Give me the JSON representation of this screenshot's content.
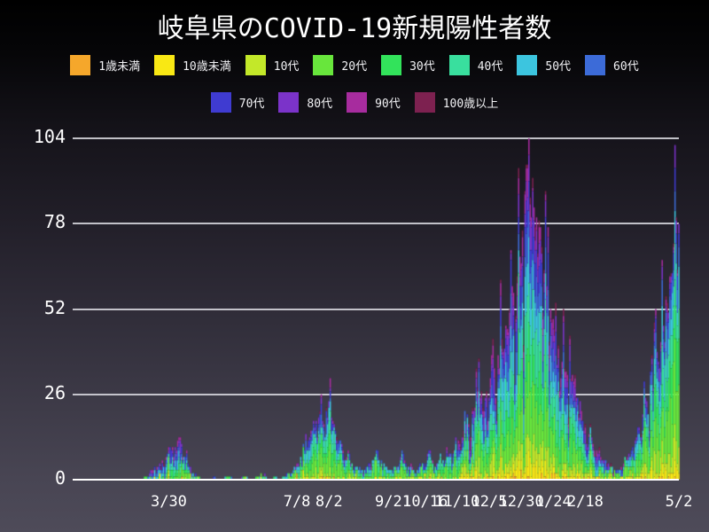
{
  "chart_data": {
    "type": "bar",
    "subtype": "stacked-daily-bars",
    "title": "岐阜県のCOVID-19新規陽性者数",
    "xlabel": "",
    "ylabel": "",
    "ylim": [
      0,
      104
    ],
    "yticks": [
      0,
      26,
      52,
      78,
      104
    ],
    "grid": "horizontal",
    "legend_position": "top-two-rows",
    "series": [
      {
        "name": "1歳未満",
        "color": "#F5A72B"
      },
      {
        "name": "10歳未満",
        "color": "#F9E814"
      },
      {
        "name": "10代",
        "color": "#C3E829"
      },
      {
        "name": "20代",
        "color": "#68E63C"
      },
      {
        "name": "30代",
        "color": "#32E35B"
      },
      {
        "name": "40代",
        "color": "#39DF9E"
      },
      {
        "name": "50代",
        "color": "#3CC5DF"
      },
      {
        "name": "60代",
        "color": "#3C6BD8"
      },
      {
        "name": "70代",
        "color": "#3F3BD1"
      },
      {
        "name": "80代",
        "color": "#7B33C9"
      },
      {
        "name": "90代",
        "color": "#A72C9E"
      },
      {
        "name": "100歳以上",
        "color": "#7D2150"
      }
    ],
    "legend_rows": [
      [
        0,
        1,
        2,
        3,
        4,
        5,
        6,
        7
      ],
      [
        8,
        9,
        10,
        11
      ]
    ],
    "x_axis": {
      "total_days": 474,
      "tick_labels": [
        {
          "label": "3/30",
          "day": 75
        },
        {
          "label": "7/8",
          "day": 175
        },
        {
          "label": "8/2",
          "day": 200
        },
        {
          "label": "9/21",
          "day": 250
        },
        {
          "label": "10/16",
          "day": 275
        },
        {
          "label": "11/10",
          "day": 300
        },
        {
          "label": "12/5",
          "day": 325
        },
        {
          "label": "12/30",
          "day": 350
        },
        {
          "label": "1/24",
          "day": 375
        },
        {
          "label": "2/18",
          "day": 400
        },
        {
          "label": "5/2",
          "day": 473
        }
      ]
    },
    "age_share_periods": [
      {
        "from_day": 0,
        "to_day": 120,
        "shares": [
          0.005,
          0.02,
          0.04,
          0.17,
          0.13,
          0.14,
          0.14,
          0.12,
          0.1,
          0.08,
          0.045,
          0.01
        ]
      },
      {
        "from_day": 120,
        "to_day": 300,
        "shares": [
          0.005,
          0.03,
          0.06,
          0.27,
          0.17,
          0.14,
          0.12,
          0.08,
          0.06,
          0.04,
          0.02,
          0.005
        ]
      },
      {
        "from_day": 300,
        "to_day": 420,
        "shares": [
          0.005,
          0.04,
          0.07,
          0.17,
          0.13,
          0.13,
          0.12,
          0.09,
          0.09,
          0.08,
          0.055,
          0.02
        ]
      },
      {
        "from_day": 420,
        "to_day": 474,
        "shares": [
          0.005,
          0.05,
          0.09,
          0.24,
          0.16,
          0.15,
          0.12,
          0.08,
          0.05,
          0.035,
          0.015,
          0.005
        ]
      }
    ],
    "daily_total_envelope": [
      [
        0,
        0
      ],
      [
        54,
        0
      ],
      [
        57,
        1
      ],
      [
        60,
        2
      ],
      [
        63,
        3
      ],
      [
        66,
        4
      ],
      [
        70,
        6
      ],
      [
        74,
        8
      ],
      [
        78,
        10
      ],
      [
        82,
        12
      ],
      [
        85,
        11
      ],
      [
        88,
        7
      ],
      [
        91,
        4
      ],
      [
        94,
        2
      ],
      [
        98,
        1
      ],
      [
        102,
        0
      ],
      [
        109,
        0
      ],
      [
        110,
        1
      ],
      [
        112,
        0
      ],
      [
        124,
        1
      ],
      [
        126,
        0
      ],
      [
        136,
        1
      ],
      [
        138,
        0
      ],
      [
        150,
        2
      ],
      [
        152,
        0
      ],
      [
        158,
        1
      ],
      [
        160,
        0
      ],
      [
        166,
        1
      ],
      [
        169,
        2
      ],
      [
        172,
        3
      ],
      [
        175,
        5
      ],
      [
        178,
        7
      ],
      [
        181,
        9
      ],
      [
        184,
        12
      ],
      [
        187,
        15
      ],
      [
        190,
        18
      ],
      [
        193,
        21
      ],
      [
        196,
        17
      ],
      [
        198,
        22
      ],
      [
        200,
        24
      ],
      [
        202,
        19
      ],
      [
        205,
        15
      ],
      [
        208,
        12
      ],
      [
        211,
        9
      ],
      [
        214,
        7
      ],
      [
        218,
        5
      ],
      [
        222,
        4
      ],
      [
        226,
        3
      ],
      [
        230,
        4
      ],
      [
        234,
        6
      ],
      [
        238,
        9
      ],
      [
        241,
        6
      ],
      [
        244,
        4
      ],
      [
        247,
        3
      ],
      [
        250,
        3
      ],
      [
        253,
        4
      ],
      [
        257,
        9
      ],
      [
        260,
        5
      ],
      [
        263,
        4
      ],
      [
        266,
        3
      ],
      [
        269,
        3
      ],
      [
        272,
        4
      ],
      [
        277,
        8
      ],
      [
        281,
        6
      ],
      [
        285,
        5
      ],
      [
        289,
        6
      ],
      [
        293,
        7
      ],
      [
        297,
        9
      ],
      [
        301,
        12
      ],
      [
        305,
        15
      ],
      [
        309,
        17
      ],
      [
        313,
        21
      ],
      [
        317,
        37
      ],
      [
        320,
        22
      ],
      [
        323,
        27
      ],
      [
        326,
        31
      ],
      [
        329,
        34
      ],
      [
        332,
        38
      ],
      [
        335,
        43
      ],
      [
        338,
        47
      ],
      [
        341,
        52
      ],
      [
        344,
        57
      ],
      [
        347,
        62
      ],
      [
        349,
        68
      ],
      [
        351,
        76
      ],
      [
        353,
        88
      ],
      [
        355,
        96
      ],
      [
        356,
        104
      ],
      [
        357,
        86
      ],
      [
        359,
        92
      ],
      [
        361,
        77
      ],
      [
        363,
        69
      ],
      [
        364,
        79
      ],
      [
        366,
        71
      ],
      [
        368,
        64
      ],
      [
        370,
        59
      ],
      [
        373,
        52
      ],
      [
        376,
        46
      ],
      [
        379,
        41
      ],
      [
        382,
        36
      ],
      [
        385,
        33
      ],
      [
        388,
        44
      ],
      [
        391,
        30
      ],
      [
        394,
        25
      ],
      [
        397,
        21
      ],
      [
        400,
        17
      ],
      [
        403,
        14
      ],
      [
        406,
        11
      ],
      [
        409,
        9
      ],
      [
        412,
        7
      ],
      [
        415,
        6
      ],
      [
        418,
        5
      ],
      [
        421,
        4
      ],
      [
        424,
        3
      ],
      [
        427,
        3
      ],
      [
        430,
        5
      ],
      [
        433,
        7
      ],
      [
        436,
        9
      ],
      [
        439,
        12
      ],
      [
        442,
        16
      ],
      [
        445,
        20
      ],
      [
        448,
        24
      ],
      [
        451,
        33
      ],
      [
        453,
        28
      ],
      [
        455,
        52
      ],
      [
        457,
        36
      ],
      [
        459,
        42
      ],
      [
        461,
        47
      ],
      [
        464,
        54
      ],
      [
        467,
        63
      ],
      [
        469,
        72
      ],
      [
        470,
        102
      ],
      [
        471,
        80
      ],
      [
        472,
        64
      ],
      [
        473,
        78
      ]
    ]
  }
}
